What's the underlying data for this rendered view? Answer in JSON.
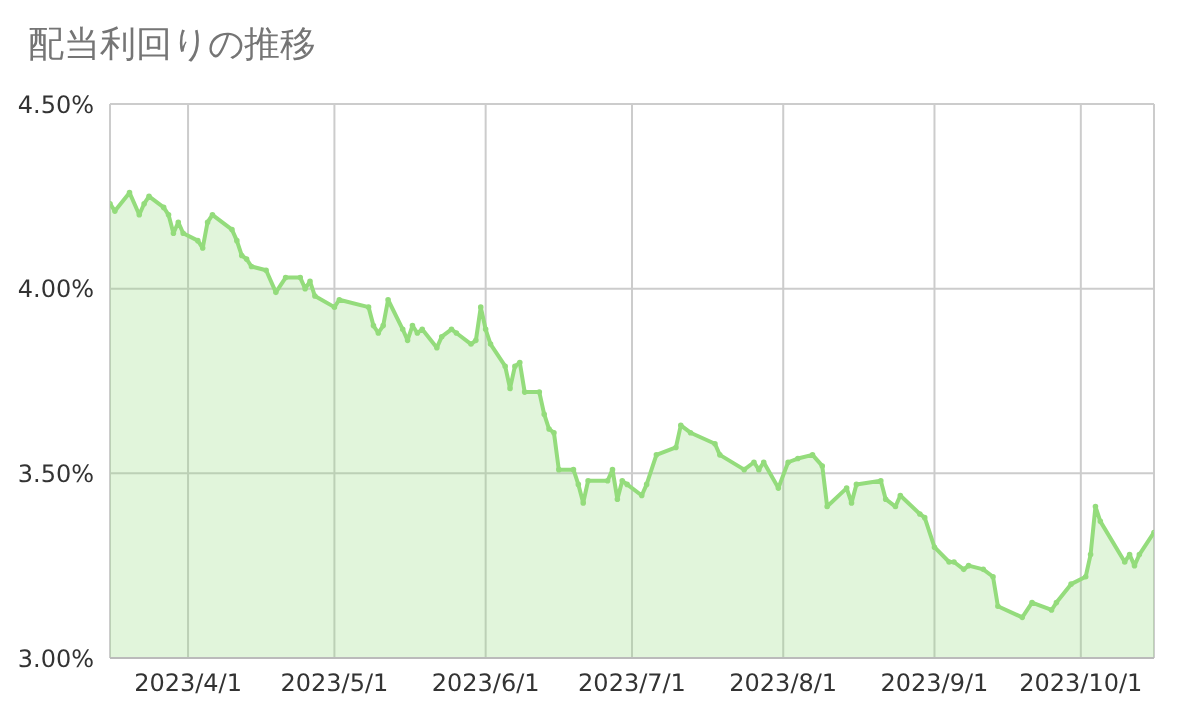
{
  "chart_data": {
    "type": "area",
    "title": "配当利回りの推移",
    "x": [
      "2023-03-16",
      "2023-03-17",
      "2023-03-20",
      "2023-03-22",
      "2023-03-23",
      "2023-03-24",
      "2023-03-27",
      "2023-03-28",
      "2023-03-29",
      "2023-03-30",
      "2023-03-31",
      "2023-04-03",
      "2023-04-04",
      "2023-04-05",
      "2023-04-06",
      "2023-04-10",
      "2023-04-11",
      "2023-04-12",
      "2023-04-13",
      "2023-04-14",
      "2023-04-17",
      "2023-04-19",
      "2023-04-21",
      "2023-04-24",
      "2023-04-25",
      "2023-04-26",
      "2023-04-27",
      "2023-05-01",
      "2023-05-02",
      "2023-05-08",
      "2023-05-09",
      "2023-05-10",
      "2023-05-11",
      "2023-05-12",
      "2023-05-15",
      "2023-05-16",
      "2023-05-17",
      "2023-05-18",
      "2023-05-19",
      "2023-05-22",
      "2023-05-23",
      "2023-05-25",
      "2023-05-26",
      "2023-05-29",
      "2023-05-30",
      "2023-05-31",
      "2023-06-01",
      "2023-06-02",
      "2023-06-05",
      "2023-06-06",
      "2023-06-07",
      "2023-06-08",
      "2023-06-09",
      "2023-06-12",
      "2023-06-13",
      "2023-06-14",
      "2023-06-15",
      "2023-06-16",
      "2023-06-19",
      "2023-06-20",
      "2023-06-21",
      "2023-06-22",
      "2023-06-26",
      "2023-06-27",
      "2023-06-28",
      "2023-06-29",
      "2023-06-30",
      "2023-07-03",
      "2023-07-04",
      "2023-07-06",
      "2023-07-10",
      "2023-07-11",
      "2023-07-13",
      "2023-07-18",
      "2023-07-19",
      "2023-07-24",
      "2023-07-26",
      "2023-07-27",
      "2023-07-28",
      "2023-07-31",
      "2023-08-02",
      "2023-08-04",
      "2023-08-07",
      "2023-08-09",
      "2023-08-10",
      "2023-08-14",
      "2023-08-15",
      "2023-08-16",
      "2023-08-21",
      "2023-08-22",
      "2023-08-24",
      "2023-08-25",
      "2023-08-29",
      "2023-08-30",
      "2023-09-01",
      "2023-09-04",
      "2023-09-05",
      "2023-09-07",
      "2023-09-08",
      "2023-09-11",
      "2023-09-13",
      "2023-09-14",
      "2023-09-19",
      "2023-09-21",
      "2023-09-25",
      "2023-09-26",
      "2023-09-29",
      "2023-10-02",
      "2023-10-03",
      "2023-10-04",
      "2023-10-05",
      "2023-10-10",
      "2023-10-11",
      "2023-10-12",
      "2023-10-13",
      "2023-10-16"
    ],
    "series": [
      {
        "color": "#94dc7c",
        "values": [
          4.23,
          4.21,
          4.26,
          4.2,
          4.23,
          4.25,
          4.22,
          4.2,
          4.15,
          4.18,
          4.15,
          4.13,
          4.11,
          4.18,
          4.2,
          4.16,
          4.13,
          4.09,
          4.08,
          4.06,
          4.05,
          3.99,
          4.03,
          4.03,
          4.0,
          4.02,
          3.98,
          3.95,
          3.97,
          3.95,
          3.9,
          3.88,
          3.9,
          3.97,
          3.89,
          3.86,
          3.9,
          3.88,
          3.89,
          3.84,
          3.87,
          3.89,
          3.88,
          3.85,
          3.86,
          3.95,
          3.89,
          3.85,
          3.79,
          3.73,
          3.79,
          3.8,
          3.72,
          3.72,
          3.66,
          3.62,
          3.61,
          3.51,
          3.51,
          3.47,
          3.42,
          3.48,
          3.48,
          3.51,
          3.43,
          3.48,
          3.47,
          3.44,
          3.47,
          3.55,
          3.57,
          3.63,
          3.61,
          3.58,
          3.55,
          3.51,
          3.53,
          3.51,
          3.53,
          3.46,
          3.53,
          3.54,
          3.55,
          3.52,
          3.41,
          3.46,
          3.42,
          3.47,
          3.48,
          3.43,
          3.41,
          3.44,
          3.39,
          3.38,
          3.3,
          3.26,
          3.26,
          3.24,
          3.25,
          3.24,
          3.22,
          3.14,
          3.11,
          3.15,
          3.13,
          3.15,
          3.2,
          3.22,
          3.28,
          3.41,
          3.37,
          3.26,
          3.28,
          3.25,
          3.28,
          3.34
        ]
      }
    ],
    "xlim": [
      "2023-03-16",
      "2023-10-16"
    ],
    "xticks": [
      {
        "value": "2023-04-01",
        "label": "2023/4/1"
      },
      {
        "value": "2023-05-01",
        "label": "2023/5/1"
      },
      {
        "value": "2023-06-01",
        "label": "2023/6/1"
      },
      {
        "value": "2023-07-01",
        "label": "2023/7/1"
      },
      {
        "value": "2023-08-01",
        "label": "2023/8/1"
      },
      {
        "value": "2023-09-01",
        "label": "2023/9/1"
      },
      {
        "value": "2023-10-01",
        "label": "2023/10/1"
      }
    ],
    "ylim": [
      3.0,
      4.5
    ],
    "yticks": [
      {
        "value": 3.0,
        "label": "3.00%"
      },
      {
        "value": 3.5,
        "label": "3.50%"
      },
      {
        "value": 4.0,
        "label": "4.00%"
      },
      {
        "value": 4.5,
        "label": "4.50%"
      }
    ],
    "grid": true,
    "marker": "circle",
    "line_style": "solid"
  }
}
